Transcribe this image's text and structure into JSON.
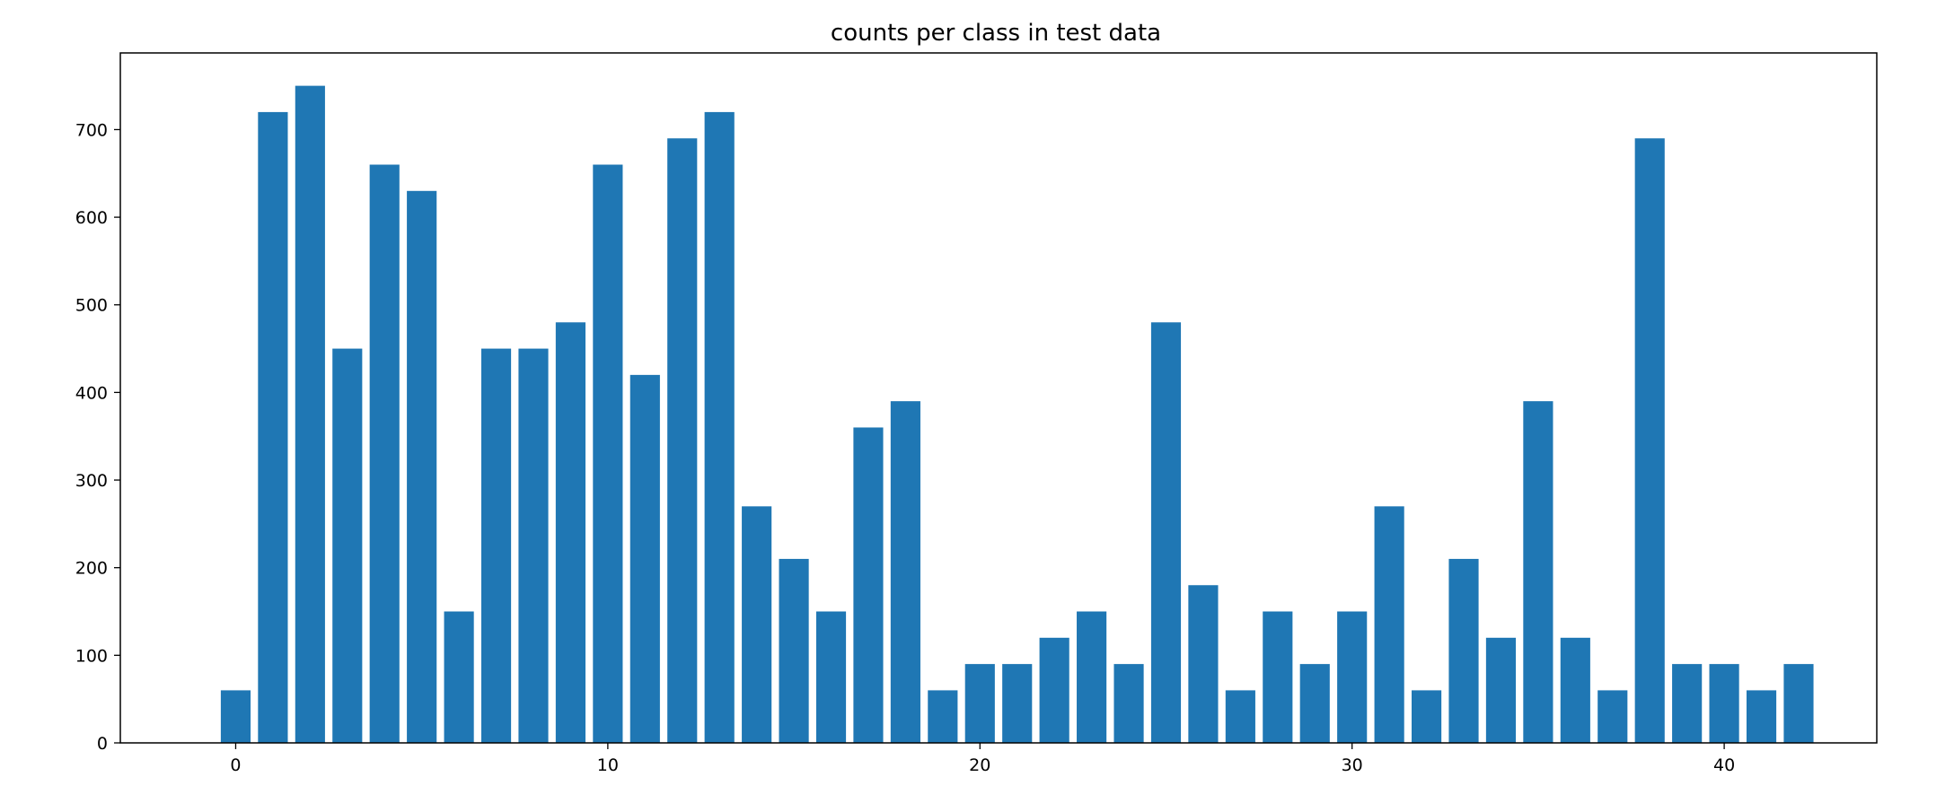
{
  "chart_data": {
    "type": "bar",
    "title": "counts per class in test data",
    "xlabel": "",
    "ylabel": "",
    "x": [
      0,
      1,
      2,
      3,
      4,
      5,
      6,
      7,
      8,
      9,
      10,
      11,
      12,
      13,
      14,
      15,
      16,
      17,
      18,
      19,
      20,
      21,
      22,
      23,
      24,
      25,
      26,
      27,
      28,
      29,
      30,
      31,
      32,
      33,
      34,
      35,
      36,
      37,
      38,
      39,
      40,
      41,
      42
    ],
    "values": [
      60,
      720,
      750,
      450,
      660,
      630,
      150,
      450,
      450,
      480,
      660,
      420,
      690,
      720,
      270,
      210,
      150,
      360,
      390,
      60,
      90,
      90,
      120,
      150,
      90,
      480,
      180,
      60,
      150,
      90,
      150,
      270,
      60,
      210,
      120,
      390,
      120,
      60,
      690,
      90,
      90,
      60,
      90
    ],
    "xlim": [
      -3.1,
      44.1
    ],
    "ylim": [
      0,
      787.5
    ],
    "xticks": [
      0,
      10,
      20,
      30,
      40
    ],
    "xtick_labels": [
      "0",
      "10",
      "20",
      "30",
      "40"
    ],
    "yticks": [
      0,
      100,
      200,
      300,
      400,
      500,
      600,
      700
    ],
    "ytick_labels": [
      "0",
      "100",
      "200",
      "300",
      "400",
      "500",
      "600",
      "700"
    ],
    "grid": false,
    "bar_color": "#1f77b4"
  }
}
